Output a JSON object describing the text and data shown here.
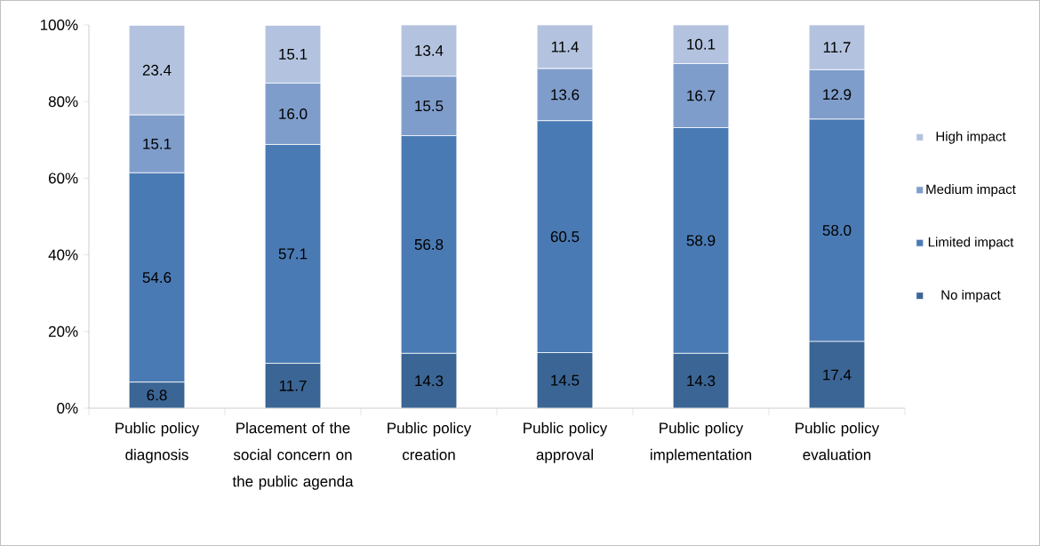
{
  "chart_data": {
    "type": "bar",
    "stacked": true,
    "legend": "right",
    "categories": [
      "Public policy diagnosis",
      "Placement of the social concern on the public agenda",
      "Public policy creation",
      "Public policy approval",
      "Public policy implementation",
      "Public policy evaluation"
    ],
    "series": [
      {
        "name": "No impact",
        "color": "#3b6594",
        "values": [
          6.8,
          11.7,
          14.3,
          14.5,
          14.3,
          17.4
        ],
        "value_labels": [
          "6.8",
          "11.7",
          "14.3",
          "14.5",
          "14.3",
          "17.4"
        ]
      },
      {
        "name": "Limited impact",
        "color": "#4a7ab3",
        "values": [
          54.6,
          57.1,
          56.8,
          60.5,
          58.9,
          58.0
        ],
        "value_labels": [
          "54.6",
          "57.1",
          "56.8",
          "60.5",
          "58.9",
          "58.0"
        ]
      },
      {
        "name": "Medium impact",
        "color": "#7f9dcb",
        "values": [
          15.1,
          16.0,
          15.5,
          13.6,
          16.7,
          12.9
        ],
        "value_labels": [
          "15.1",
          "16.0",
          "15.5",
          "13.6",
          "16.7",
          "12.9"
        ]
      },
      {
        "name": "High impact",
        "color": "#b3c3df",
        "values": [
          23.4,
          15.1,
          13.4,
          11.4,
          10.1,
          11.7
        ],
        "value_labels": [
          "23.4",
          "15.1",
          "13.4",
          "11.4",
          "10.1",
          "11.7"
        ]
      }
    ],
    "ylim": [
      0,
      100
    ],
    "yticks": [
      {
        "value": 0,
        "label": "0%"
      },
      {
        "value": 20,
        "label": "20%"
      },
      {
        "value": 40,
        "label": "40%"
      },
      {
        "value": 60,
        "label": "60%"
      },
      {
        "value": 80,
        "label": "80%"
      },
      {
        "value": 100,
        "label": "100%"
      }
    ]
  }
}
